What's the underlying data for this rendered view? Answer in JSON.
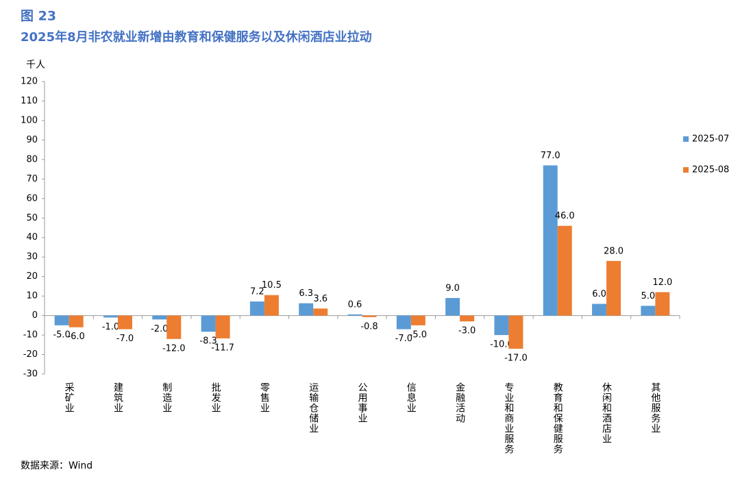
{
  "chart_data": {
    "type": "bar",
    "title": "图 23",
    "subtitle": "2025年8月非农就业新增由教育和保健服务以及休闲酒店业拉动",
    "y_label": "千人",
    "source": "数据来源：Wind",
    "categories": [
      "采矿业",
      "建筑业",
      "制造业",
      "批发业",
      "零售业",
      "运输仓储业",
      "公用事业",
      "信息业",
      "金融活动",
      "专业和商业服务",
      "教育和保健服务",
      "休闲和酒店业",
      "其他服务业"
    ],
    "series": [
      {
        "name": "2025-07",
        "color": "#5b9bd5",
        "values": [
          -5,
          -1,
          -2,
          -8.3,
          7.2,
          6.3,
          0.6,
          -7,
          9,
          -10,
          77,
          6,
          5
        ],
        "value_labels": [
          "-5.0",
          "-1.0",
          "-2.0",
          "-8.3",
          "7.2",
          "6.3",
          "0.6",
          "-7.0",
          "9.0",
          "-10.0",
          "77.0",
          "6.0",
          "5.0"
        ]
      },
      {
        "name": "2025-08",
        "color": "#ed7d31",
        "values": [
          -6,
          -7,
          -12,
          -11.7,
          10.5,
          3.6,
          -0.8,
          -5,
          -3,
          -17,
          46,
          28,
          12
        ],
        "value_labels": [
          "-6.0",
          "-7.0",
          "-12.0",
          "-11.7",
          "10.5",
          "3.6",
          "-0.8",
          "-5.0",
          "-3.0",
          "-17.0",
          "46.0",
          "28.0",
          "12.0"
        ]
      }
    ],
    "ylim": [
      -30,
      120
    ],
    "yticks": [
      -30,
      -20,
      -10,
      0,
      10,
      20,
      30,
      40,
      50,
      60,
      70,
      80,
      90,
      100,
      110,
      120
    ],
    "grid": false,
    "legend": "right"
  }
}
